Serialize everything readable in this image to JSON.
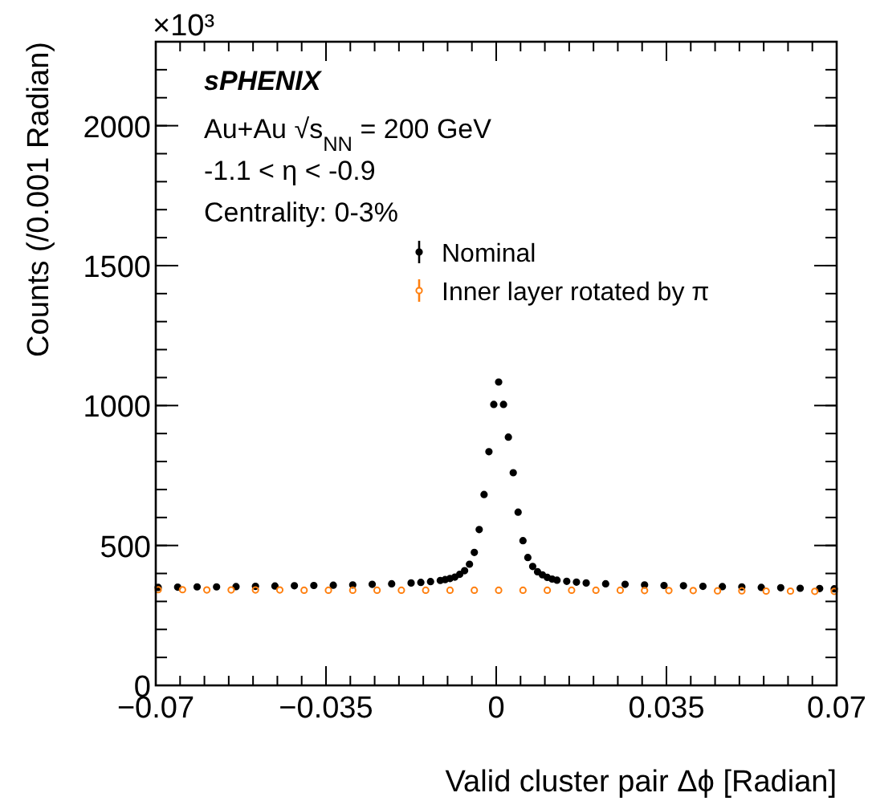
{
  "chart_data": {
    "type": "scatter",
    "xlabel": "Valid cluster pair Δϕ [Radian]",
    "ylabel": "Counts (/0.001 Radian)",
    "xlim": [
      -0.07,
      0.07
    ],
    "xticks": [
      {
        "value": -0.07,
        "label": "−0.07"
      },
      {
        "value": -0.035,
        "label": "−0.035"
      },
      0,
      0.035,
      0.07
    ],
    "ylim": [
      0,
      2300
    ],
    "yticks": [
      0,
      500,
      1000,
      1500,
      2000
    ],
    "grid": false,
    "legend": "top right",
    "marker": "circle",
    "annotations": [
      "×10³",
      "sPHENIX",
      "Au+Au  √s$_{NN}$ = 200 GeV",
      "-1.1 < η < -0.9",
      "Centrality: 0-3%"
    ],
    "series": [
      {
        "name": "Nominal",
        "color": "#000000",
        "x": [
          -0.0695,
          -0.0655,
          -0.0615,
          -0.0575,
          -0.0535,
          -0.0495,
          -0.0455,
          -0.0415,
          -0.0375,
          -0.0335,
          -0.0295,
          -0.0255,
          -0.0215,
          -0.0175,
          -0.0155,
          -0.0135,
          -0.0115,
          -0.0105,
          -0.0095,
          -0.0085,
          -0.0075,
          -0.0065,
          -0.0055,
          -0.0045,
          -0.0035,
          -0.0025,
          -0.0015,
          -0.0005,
          0.0005,
          0.0015,
          0.0025,
          0.0035,
          0.0045,
          0.0055,
          0.0065,
          0.0075,
          0.0085,
          0.0095,
          0.0105,
          0.0115,
          0.0125,
          0.0145,
          0.0165,
          0.0185,
          0.0225,
          0.0265,
          0.0305,
          0.0345,
          0.0385,
          0.0425,
          0.0465,
          0.0505,
          0.0545,
          0.0585,
          0.0625,
          0.0665,
          0.0695
        ],
        "values": [
          350,
          351,
          352,
          352,
          353,
          354,
          355,
          356,
          357,
          358,
          359,
          361,
          363,
          366,
          368,
          371,
          375,
          378,
          382,
          387,
          397,
          410,
          433,
          475,
          557,
          682,
          835,
          1004,
          1084,
          1004,
          887,
          760,
          619,
          517,
          457,
          425,
          406,
          395,
          386,
          380,
          376,
          372,
          369,
          366,
          363,
          361,
          359,
          357,
          356,
          354,
          353,
          352,
          350,
          349,
          347,
          346,
          345
        ]
      },
      {
        "name": "Inner layer rotated by π",
        "color": "#ff7f0e",
        "x": [
          -0.0695,
          -0.0645,
          -0.0595,
          -0.0545,
          -0.0495,
          -0.0445,
          -0.0395,
          -0.0345,
          -0.0295,
          -0.0245,
          -0.0195,
          -0.0145,
          -0.0095,
          -0.0045,
          0.0005,
          0.0055,
          0.0105,
          0.0155,
          0.0205,
          0.0255,
          0.0305,
          0.0355,
          0.0405,
          0.0455,
          0.0505,
          0.0555,
          0.0605,
          0.0655,
          0.0695
        ],
        "values": [
          342,
          342,
          341,
          341,
          341,
          341,
          340,
          340,
          340,
          340,
          340,
          340,
          340,
          340,
          340,
          340,
          340,
          340,
          340,
          340,
          339,
          339,
          339,
          338,
          338,
          337,
          337,
          336,
          336
        ]
      }
    ]
  }
}
